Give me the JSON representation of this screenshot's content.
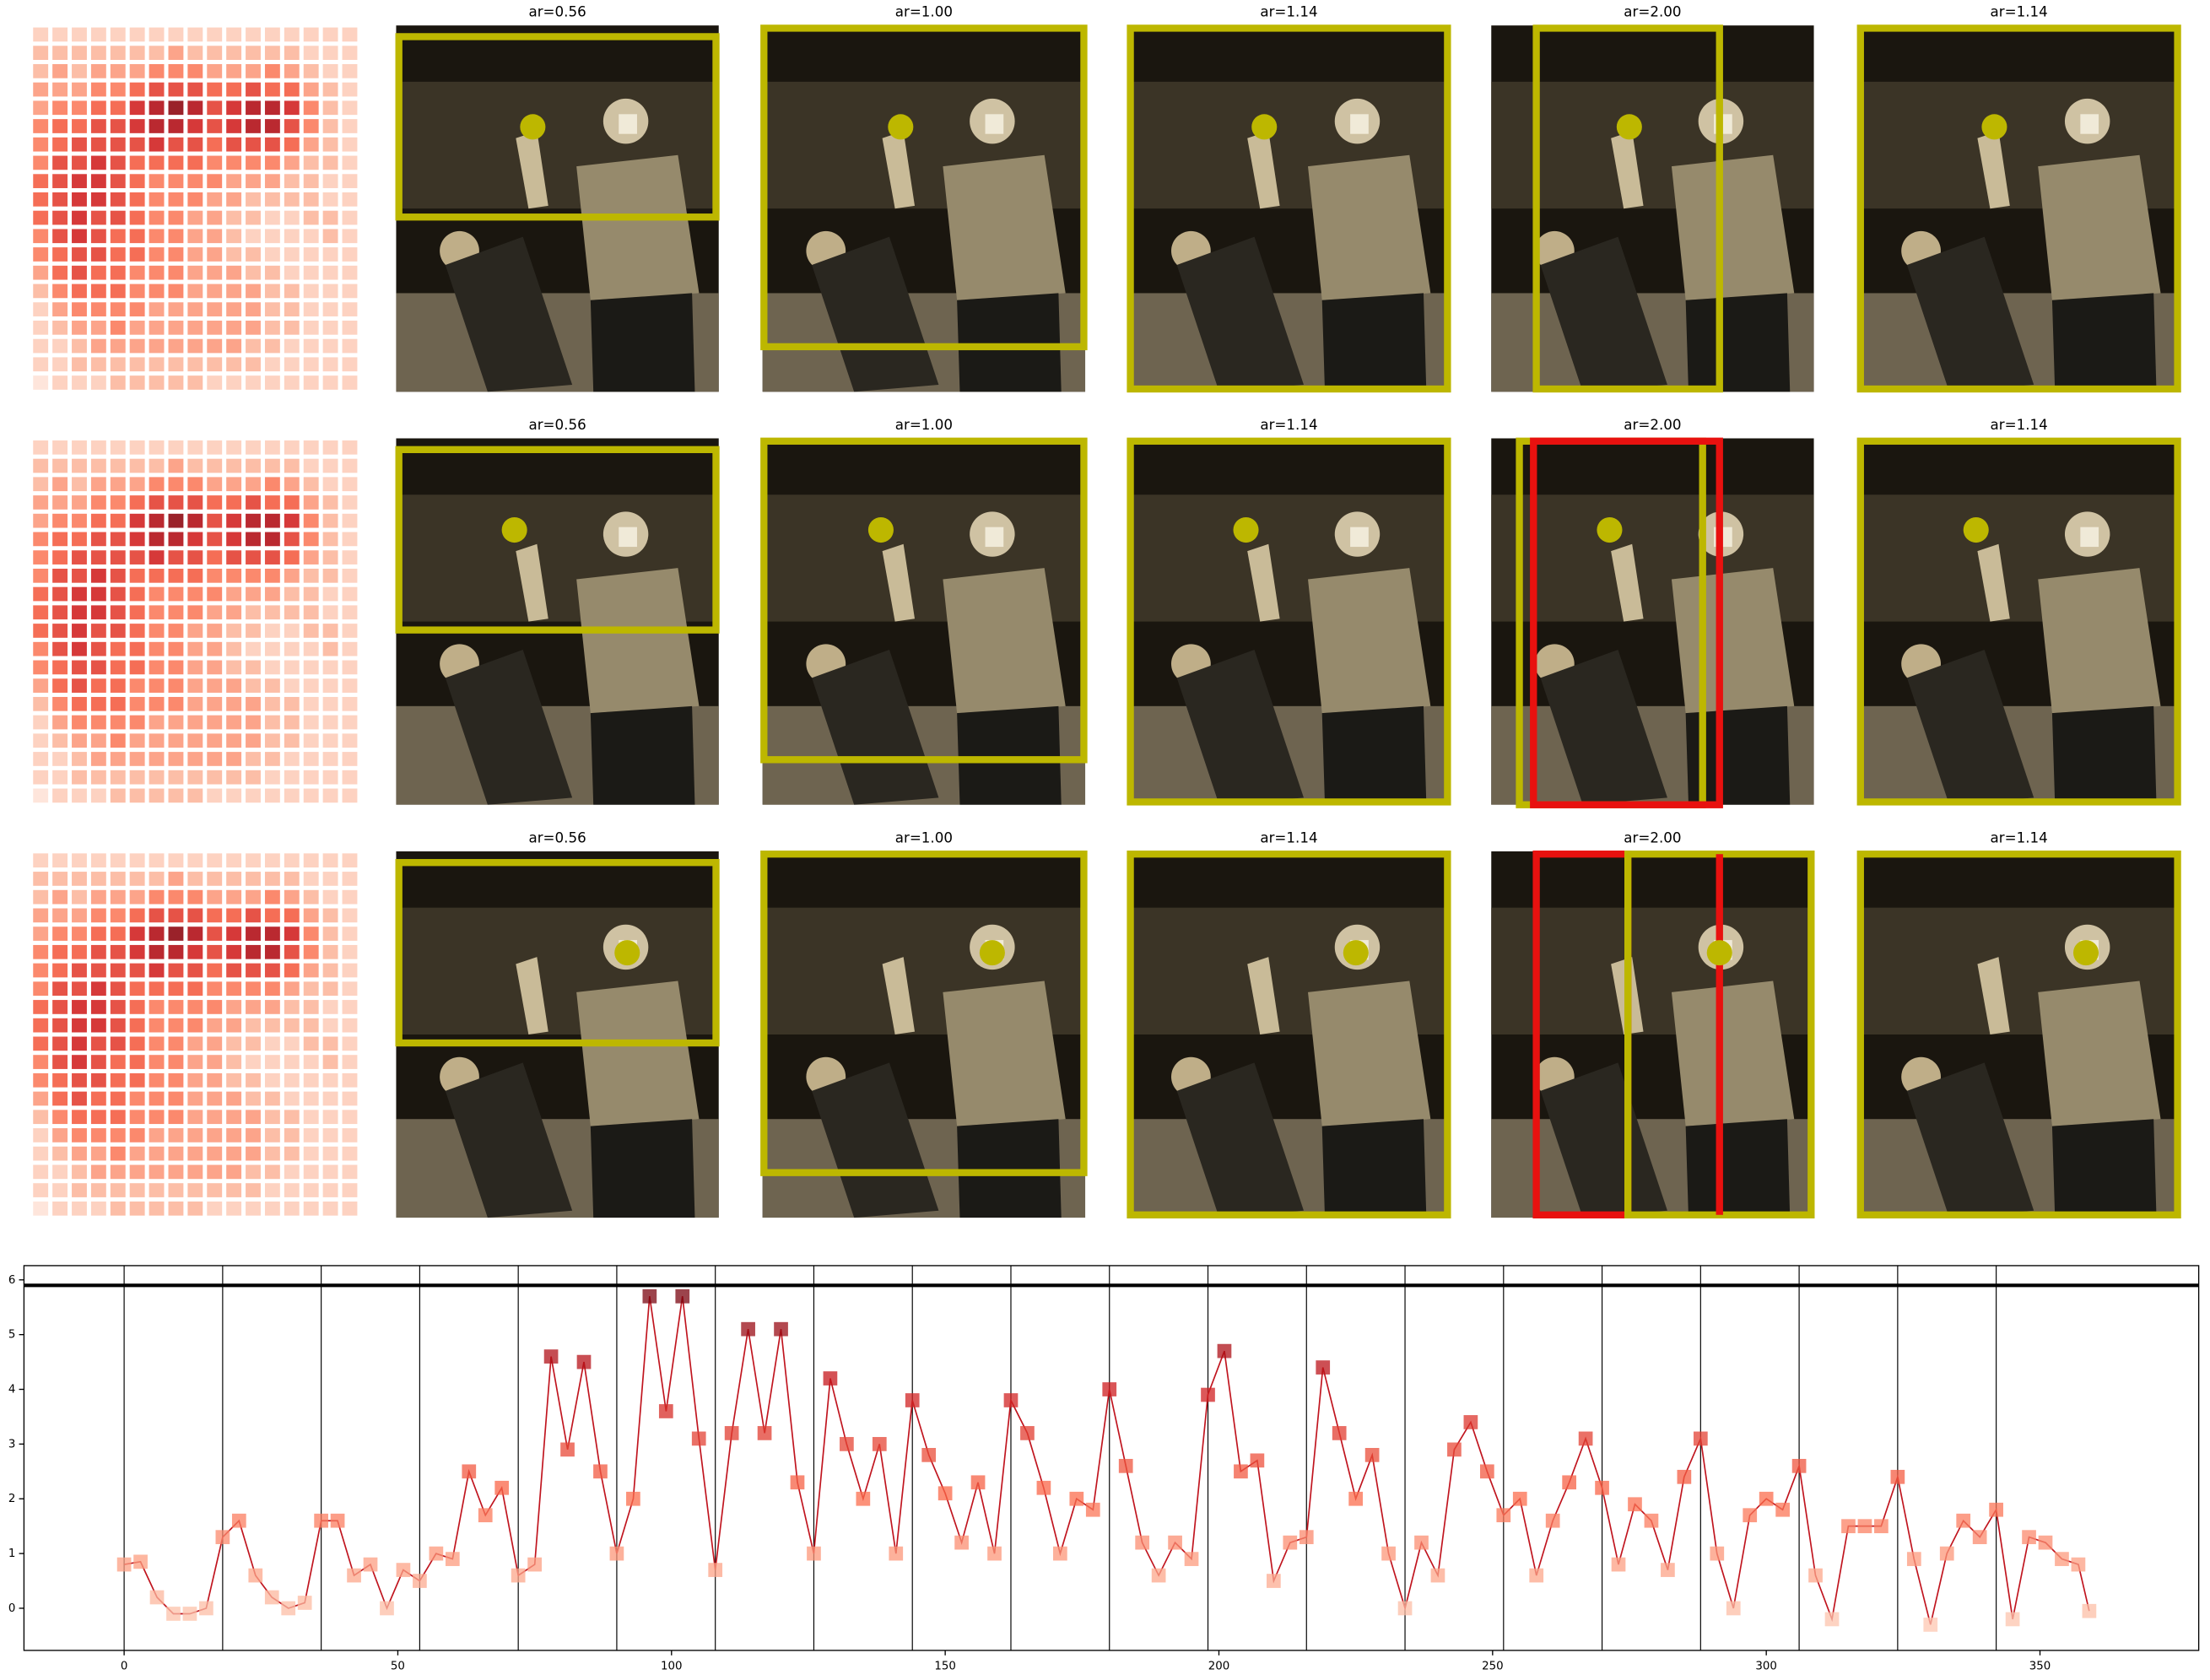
{
  "panels": {
    "titles": [
      "ar=0.56",
      "ar=1.00",
      "ar=1.14",
      "ar=2.00",
      "ar=1.14"
    ]
  },
  "heatmap": {
    "colormap": "Reds",
    "values": [
      [
        1,
        1,
        1,
        1,
        1,
        1,
        1,
        1,
        1,
        1,
        1,
        1,
        1,
        1,
        1,
        1,
        1
      ],
      [
        2,
        2,
        2,
        2,
        2,
        2,
        2,
        3,
        2,
        2,
        2,
        2,
        2,
        2,
        1,
        1,
        1
      ],
      [
        2,
        3,
        2,
        3,
        3,
        3,
        4,
        4,
        4,
        3,
        3,
        3,
        4,
        3,
        2,
        1,
        1
      ],
      [
        3,
        3,
        3,
        4,
        4,
        5,
        6,
        6,
        6,
        5,
        5,
        6,
        5,
        5,
        3,
        2,
        1
      ],
      [
        3,
        4,
        4,
        5,
        5,
        7,
        8,
        9,
        8,
        6,
        7,
        8,
        8,
        7,
        4,
        2,
        1
      ],
      [
        4,
        5,
        5,
        6,
        6,
        7,
        8,
        8,
        7,
        6,
        7,
        8,
        8,
        6,
        4,
        2,
        1
      ],
      [
        4,
        5,
        6,
        6,
        6,
        6,
        7,
        6,
        6,
        5,
        6,
        6,
        6,
        5,
        3,
        2,
        1
      ],
      [
        4,
        6,
        6,
        7,
        6,
        5,
        5,
        5,
        5,
        4,
        4,
        4,
        4,
        3,
        2,
        2,
        1
      ],
      [
        5,
        6,
        7,
        7,
        6,
        5,
        4,
        4,
        4,
        4,
        3,
        3,
        3,
        2,
        2,
        1,
        1
      ],
      [
        5,
        6,
        7,
        7,
        6,
        5,
        4,
        4,
        4,
        3,
        3,
        2,
        2,
        2,
        2,
        1,
        1
      ],
      [
        5,
        6,
        7,
        6,
        6,
        5,
        4,
        4,
        3,
        3,
        2,
        2,
        1,
        1,
        2,
        2,
        1
      ],
      [
        4,
        6,
        7,
        6,
        5,
        5,
        4,
        4,
        3,
        3,
        2,
        1,
        1,
        1,
        1,
        2,
        1
      ],
      [
        4,
        5,
        6,
        6,
        5,
        5,
        4,
        4,
        3,
        3,
        2,
        2,
        1,
        1,
        1,
        1,
        1
      ],
      [
        3,
        5,
        6,
        5,
        5,
        4,
        4,
        4,
        3,
        3,
        3,
        2,
        2,
        1,
        1,
        1,
        1
      ],
      [
        2,
        4,
        5,
        5,
        5,
        4,
        4,
        4,
        3,
        3,
        3,
        3,
        2,
        2,
        1,
        1,
        1
      ],
      [
        1,
        3,
        4,
        4,
        4,
        4,
        3,
        3,
        3,
        3,
        3,
        3,
        2,
        2,
        1,
        1,
        1
      ],
      [
        1,
        2,
        3,
        3,
        4,
        3,
        3,
        3,
        3,
        3,
        3,
        3,
        2,
        2,
        1,
        1,
        1
      ],
      [
        1,
        1,
        2,
        3,
        3,
        3,
        3,
        3,
        3,
        3,
        3,
        2,
        2,
        1,
        1,
        1,
        1
      ],
      [
        1,
        1,
        2,
        2,
        2,
        2,
        2,
        2,
        2,
        2,
        2,
        2,
        1,
        1,
        1,
        1,
        1
      ],
      [
        0,
        1,
        1,
        1,
        2,
        2,
        2,
        2,
        2,
        1,
        1,
        1,
        1,
        1,
        1,
        1,
        1
      ]
    ]
  },
  "chart_data": {
    "type": "line",
    "colormap": "Reds",
    "line_color": "#c0141e",
    "x": [
      0,
      3,
      6,
      9,
      12,
      15,
      18,
      21,
      24,
      27,
      30,
      33,
      36,
      39,
      42,
      45,
      48,
      51,
      54,
      57,
      60,
      63,
      66,
      69,
      72,
      75,
      78,
      81,
      84,
      87,
      90,
      93,
      96,
      99,
      102,
      105,
      108,
      111,
      114,
      117,
      120,
      123,
      126,
      129,
      132,
      135,
      138,
      141,
      144,
      147,
      150,
      153,
      156,
      159,
      162,
      165,
      168,
      171,
      174,
      177,
      180,
      183,
      186,
      189,
      192,
      195,
      198,
      201,
      204,
      207,
      210,
      213,
      216,
      219,
      222,
      225,
      228,
      231,
      234,
      237,
      240,
      243,
      246,
      249,
      252,
      255,
      258,
      261,
      264,
      267,
      270,
      273,
      276,
      279,
      282,
      285,
      288,
      291,
      294,
      297,
      300,
      303,
      306,
      309,
      312,
      315,
      318,
      321,
      324,
      327,
      330,
      333,
      336,
      339,
      342,
      345,
      348,
      351,
      354,
      357,
      359
    ],
    "values": [
      0.8,
      0.85,
      0.2,
      -0.1,
      -0.1,
      0.0,
      1.3,
      1.6,
      0.6,
      0.2,
      0.0,
      0.1,
      1.6,
      1.6,
      0.6,
      0.8,
      0.0,
      0.7,
      0.5,
      1.0,
      0.9,
      2.5,
      1.7,
      2.2,
      0.6,
      0.8,
      4.6,
      2.9,
      4.5,
      2.5,
      1.0,
      2.0,
      5.7,
      3.6,
      5.7,
      3.1,
      0.7,
      3.2,
      5.1,
      3.2,
      5.1,
      2.3,
      1.0,
      4.2,
      3.0,
      2.0,
      3.0,
      1.0,
      3.8,
      2.8,
      2.1,
      1.2,
      2.3,
      1.0,
      3.8,
      3.2,
      2.2,
      1.0,
      2.0,
      1.8,
      4.0,
      2.6,
      1.2,
      0.6,
      1.2,
      0.9,
      3.9,
      4.7,
      2.5,
      2.7,
      0.5,
      1.2,
      1.3,
      4.4,
      3.2,
      2.0,
      2.8,
      1.0,
      0.0,
      1.2,
      0.6,
      2.9,
      3.4,
      2.5,
      1.7,
      2.0,
      0.6,
      1.6,
      2.3,
      3.1,
      2.2,
      0.8,
      1.9,
      1.6,
      0.7,
      2.4,
      3.1,
      1.0,
      0.0,
      1.7,
      2.0,
      1.8,
      2.6,
      0.6,
      -0.2,
      1.5,
      1.5,
      1.5,
      2.4,
      0.9,
      -0.3,
      1.0,
      1.6,
      1.3,
      1.8,
      -0.2,
      1.3,
      1.2,
      0.9,
      0.8,
      -0.05
    ],
    "xlim": [
      -18.3,
      379
    ],
    "ylim": [
      -0.77,
      6.26
    ],
    "xticks": [
      0,
      50,
      100,
      150,
      200,
      250,
      300,
      350
    ],
    "yticks": [
      0,
      1,
      2,
      3,
      4,
      5,
      6
    ],
    "vlines": [
      0,
      18,
      36,
      54,
      72,
      90,
      108,
      126,
      144,
      162,
      180,
      198,
      216,
      234,
      252,
      270,
      288,
      306,
      324,
      342
    ],
    "hline": 5.9
  }
}
